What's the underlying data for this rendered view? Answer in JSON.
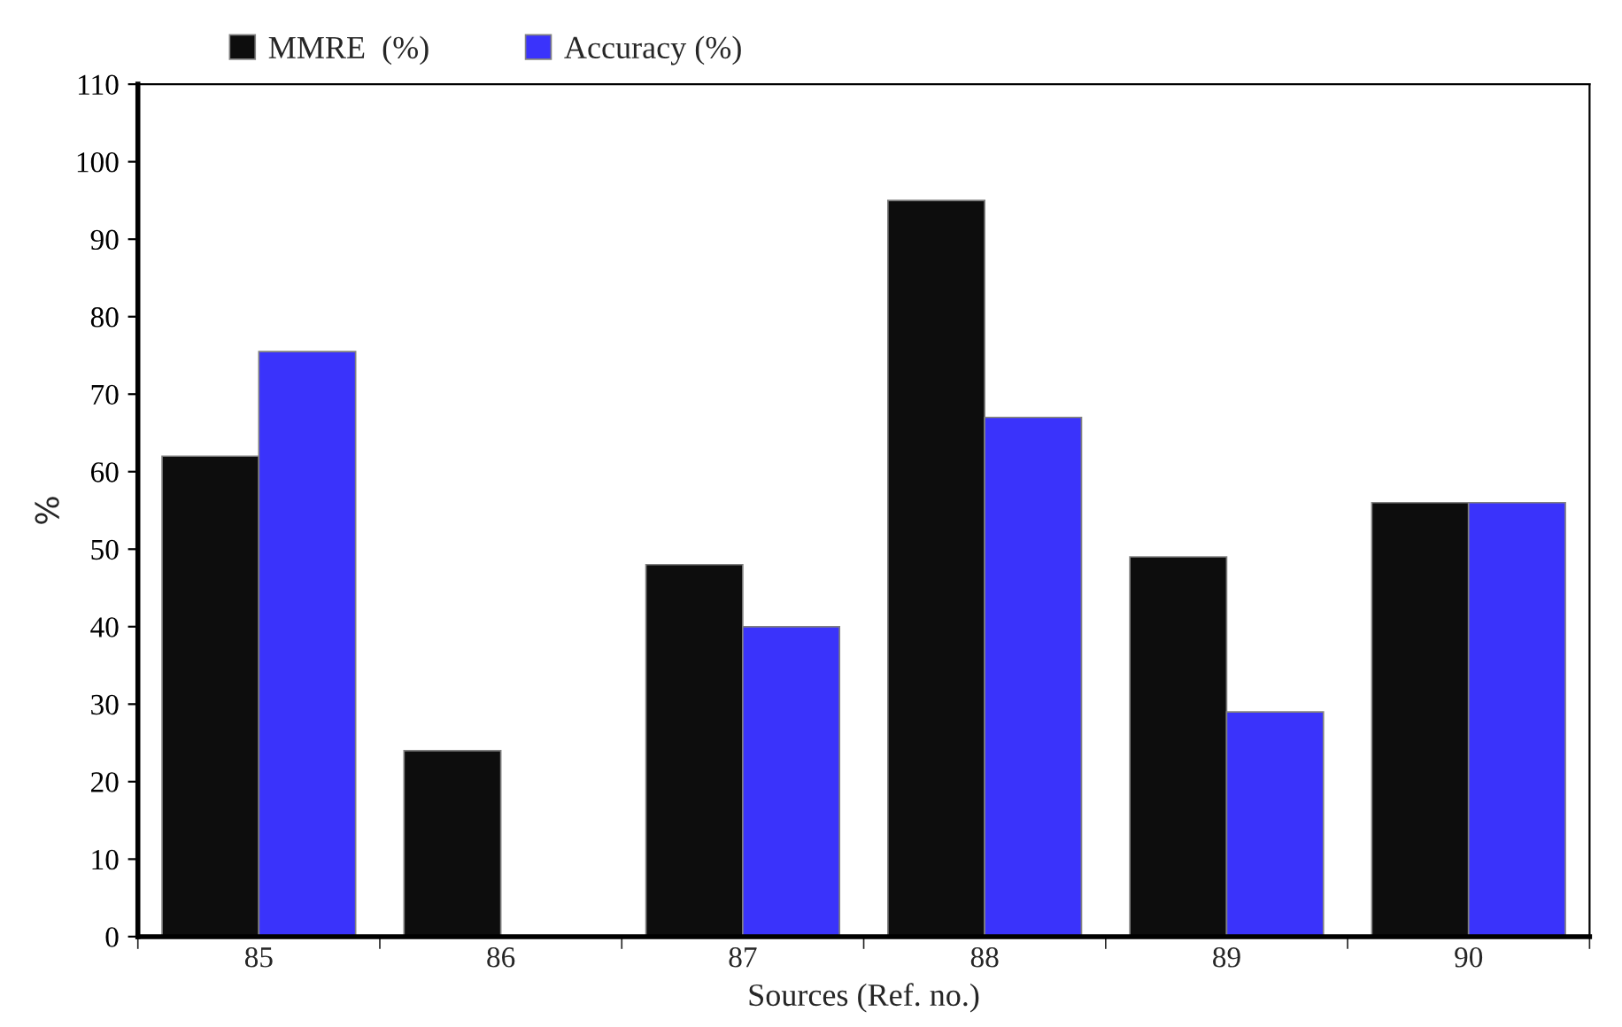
{
  "chart_data": {
    "type": "bar",
    "xlabel": "Sources (Ref. no.)",
    "ylabel": "%",
    "categories": [
      "85",
      "86",
      "87",
      "88",
      "89",
      "90"
    ],
    "series": [
      {
        "name": "MMRE  (%)",
        "color": "#0d0d0d",
        "values": [
          62,
          24,
          48,
          95,
          49,
          56
        ]
      },
      {
        "name": "Accuracy (%)",
        "color": "#3a33fb",
        "values": [
          75.5,
          null,
          40,
          67,
          29,
          56
        ]
      }
    ],
    "ylim": [
      0,
      110
    ],
    "yticks": [
      0,
      10,
      20,
      30,
      40,
      50,
      60,
      70,
      80,
      90,
      100,
      110
    ],
    "grid": false,
    "legend": "top left"
  }
}
